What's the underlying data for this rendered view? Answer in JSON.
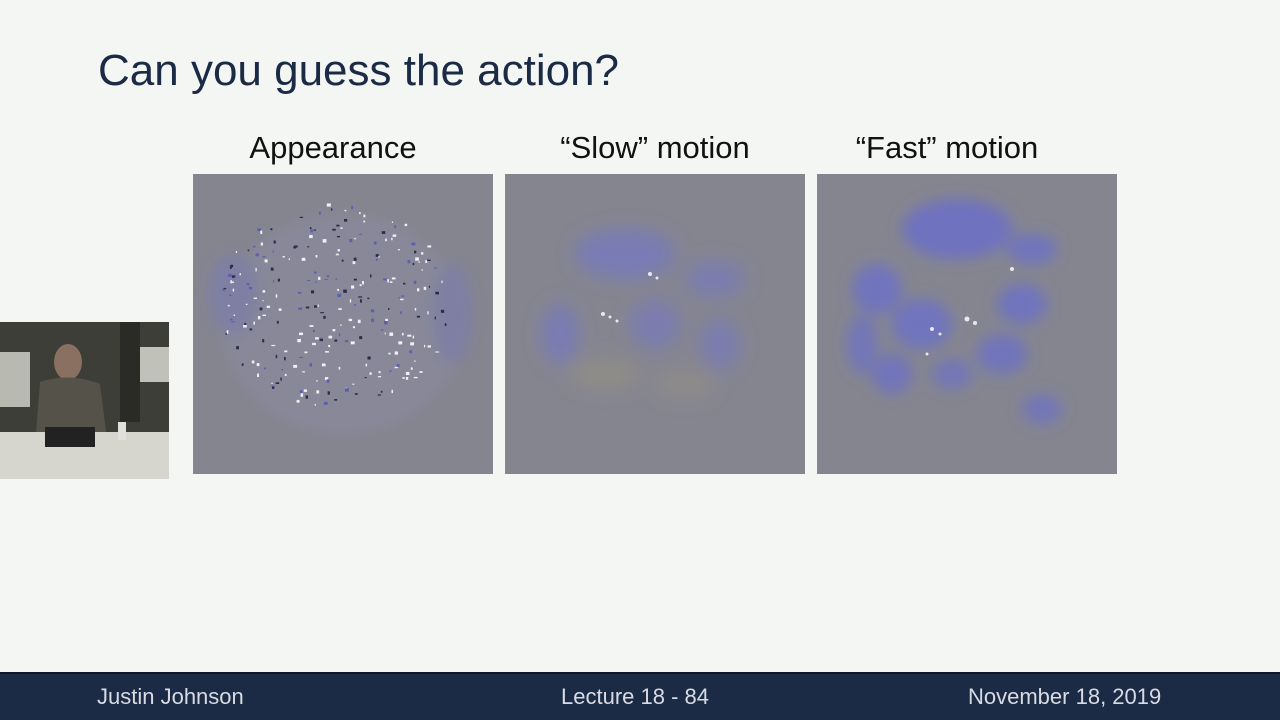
{
  "slide": {
    "title": "Can you guess the action?"
  },
  "panels": [
    {
      "label": "Appearance"
    },
    {
      "label": "“Slow” motion"
    },
    {
      "label": "“Fast” motion"
    }
  ],
  "footer": {
    "author": "Justin Johnson",
    "lecture": "Lecture 18 - 84",
    "date": "November 18, 2019"
  },
  "colors": {
    "title": "#1b2a45",
    "footer_bg": "#1b2a45",
    "panel_bg": "#858590",
    "motion_blue": "#6b6fc0",
    "motion_tan": "#9a9480"
  }
}
